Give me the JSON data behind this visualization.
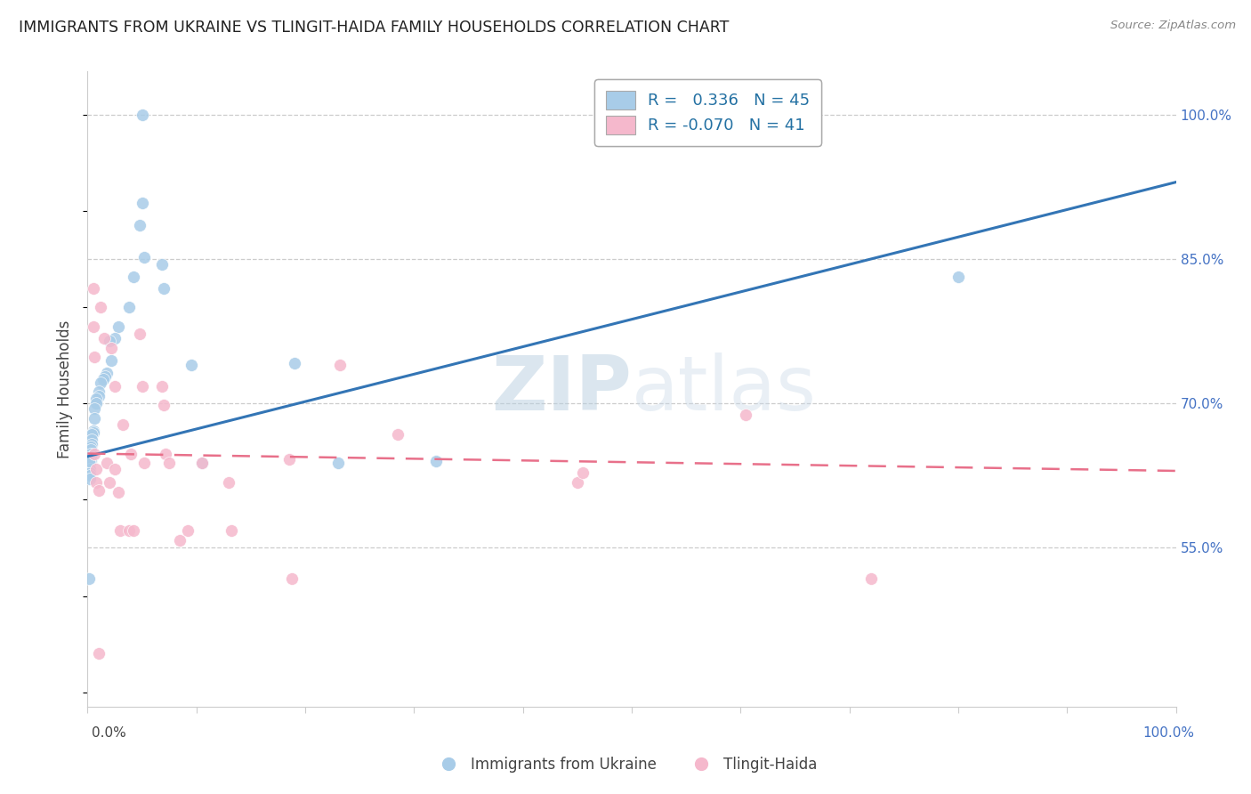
{
  "title": "IMMIGRANTS FROM UKRAINE VS TLINGIT-HAIDA FAMILY HOUSEHOLDS CORRELATION CHART",
  "source": "Source: ZipAtlas.com",
  "ylabel": "Family Households",
  "legend_blue_r": "0.336",
  "legend_blue_n": "45",
  "legend_pink_r": "-0.070",
  "legend_pink_n": "41",
  "blue_color": "#a8cce8",
  "pink_color": "#f5b8cc",
  "blue_line_color": "#3375b5",
  "pink_line_color": "#e8708a",
  "watermark_zip": "ZIP",
  "watermark_atlas": "atlas",
  "blue_scatter_x": [
    0.05,
    0.05,
    0.048,
    0.068,
    0.07,
    0.052,
    0.038,
    0.042,
    0.028,
    0.025,
    0.02,
    0.022,
    0.018,
    0.016,
    0.014,
    0.012,
    0.01,
    0.01,
    0.008,
    0.008,
    0.006,
    0.006,
    0.005,
    0.005,
    0.004,
    0.004,
    0.004,
    0.003,
    0.003,
    0.003,
    0.003,
    0.003,
    0.002,
    0.002,
    0.002,
    0.002,
    0.002,
    0.001,
    0.001,
    0.095,
    0.105,
    0.19,
    0.23,
    0.8,
    0.32
  ],
  "blue_scatter_y": [
    1.0,
    0.908,
    0.885,
    0.845,
    0.82,
    0.852,
    0.8,
    0.832,
    0.78,
    0.768,
    0.765,
    0.745,
    0.732,
    0.728,
    0.725,
    0.722,
    0.712,
    0.708,
    0.705,
    0.7,
    0.695,
    0.685,
    0.672,
    0.67,
    0.668,
    0.662,
    0.658,
    0.655,
    0.652,
    0.648,
    0.645,
    0.64,
    0.638,
    0.632,
    0.628,
    0.625,
    0.622,
    0.64,
    0.518,
    0.74,
    0.638,
    0.742,
    0.638,
    0.832,
    0.64
  ],
  "pink_scatter_x": [
    0.005,
    0.005,
    0.006,
    0.006,
    0.008,
    0.008,
    0.01,
    0.01,
    0.012,
    0.015,
    0.018,
    0.02,
    0.022,
    0.025,
    0.025,
    0.028,
    0.03,
    0.032,
    0.038,
    0.04,
    0.042,
    0.048,
    0.05,
    0.052,
    0.068,
    0.07,
    0.072,
    0.075,
    0.085,
    0.092,
    0.105,
    0.13,
    0.132,
    0.185,
    0.188,
    0.232,
    0.285,
    0.45,
    0.455,
    0.605,
    0.72
  ],
  "pink_scatter_y": [
    0.82,
    0.78,
    0.748,
    0.648,
    0.632,
    0.618,
    0.61,
    0.44,
    0.8,
    0.768,
    0.638,
    0.618,
    0.758,
    0.718,
    0.632,
    0.608,
    0.568,
    0.678,
    0.568,
    0.648,
    0.568,
    0.772,
    0.718,
    0.638,
    0.718,
    0.698,
    0.648,
    0.638,
    0.558,
    0.568,
    0.638,
    0.618,
    0.568,
    0.642,
    0.518,
    0.74,
    0.668,
    0.618,
    0.628,
    0.688,
    0.518
  ],
  "blue_line_x": [
    0.0,
    1.0
  ],
  "blue_line_y_start": 0.645,
  "blue_line_y_end": 0.93,
  "pink_line_x": [
    0.0,
    1.0
  ],
  "pink_line_y_start": 0.648,
  "pink_line_y_end": 0.63,
  "xmin": 0.0,
  "xmax": 1.0,
  "ymin": 0.385,
  "ymax": 1.045,
  "right_ytick_vals": [
    0.55,
    0.7,
    0.85,
    1.0
  ],
  "right_ytick_labels": [
    "55.0%",
    "70.0%",
    "85.0%",
    "100.0%"
  ],
  "background_color": "#ffffff",
  "grid_color": "#cccccc",
  "marker_size": 100
}
